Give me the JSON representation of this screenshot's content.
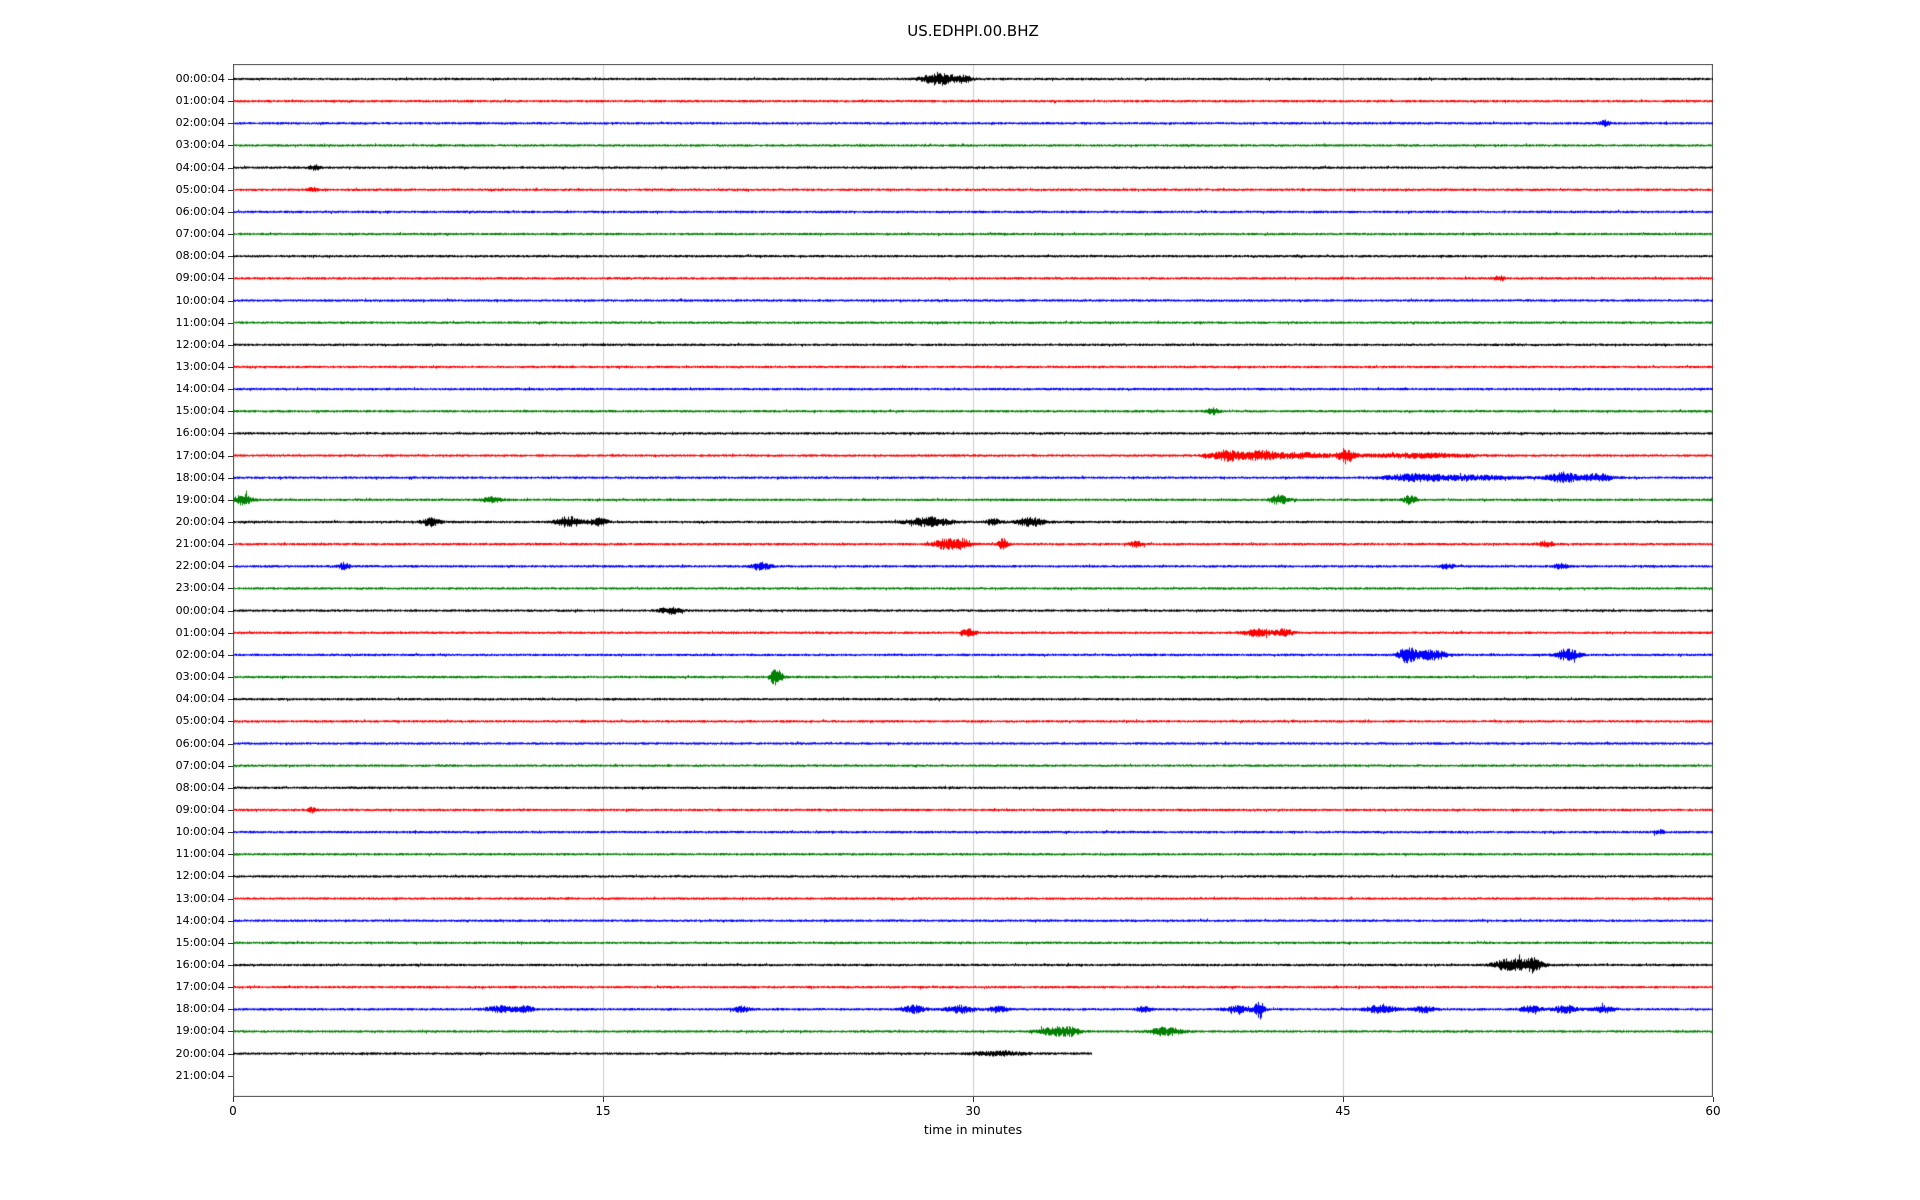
{
  "title": "US.EDHPI.00.BHZ",
  "chart_data": {
    "type": "line",
    "subtype": "helicorder-seismogram",
    "title": "US.EDHPI.00.BHZ",
    "xlabel": "time in minutes",
    "x_ticks": [
      0,
      15,
      30,
      45,
      60
    ],
    "x_range": [
      0,
      60
    ],
    "grid_x": [
      15,
      30,
      45
    ],
    "grid_color": "#cccccc",
    "box_color": "#4a4a4a",
    "color_cycle": [
      "#000000",
      "#ff0000",
      "#0000ff",
      "#008000"
    ],
    "noise_base_amplitude": 1.3,
    "rows": [
      {
        "label": "00:00:04",
        "end": 60,
        "events": [
          {
            "t": 28.6,
            "a": 6,
            "w": 0.9
          },
          {
            "t": 29.6,
            "a": 3,
            "w": 0.5
          }
        ]
      },
      {
        "label": "01:00:04",
        "end": 60,
        "events": []
      },
      {
        "label": "02:00:04",
        "end": 60,
        "events": [
          {
            "t": 55.6,
            "a": 2.5,
            "w": 0.3
          }
        ]
      },
      {
        "label": "03:00:04",
        "end": 60,
        "events": []
      },
      {
        "label": "04:00:04",
        "end": 60,
        "events": [
          {
            "t": 3.3,
            "a": 2.5,
            "w": 0.3
          }
        ]
      },
      {
        "label": "05:00:04",
        "end": 60,
        "events": [
          {
            "t": 3.2,
            "a": 2,
            "w": 0.25
          }
        ]
      },
      {
        "label": "06:00:04",
        "end": 60,
        "events": []
      },
      {
        "label": "07:00:04",
        "end": 60,
        "events": []
      },
      {
        "label": "08:00:04",
        "end": 60,
        "events": []
      },
      {
        "label": "09:00:04",
        "end": 60,
        "events": [
          {
            "t": 51.3,
            "a": 2.5,
            "w": 0.3
          }
        ]
      },
      {
        "label": "10:00:04",
        "end": 60,
        "events": []
      },
      {
        "label": "11:00:04",
        "end": 60,
        "events": []
      },
      {
        "label": "12:00:04",
        "end": 60,
        "events": []
      },
      {
        "label": "13:00:04",
        "end": 60,
        "events": []
      },
      {
        "label": "14:00:04",
        "end": 60,
        "events": []
      },
      {
        "label": "15:00:04",
        "end": 60,
        "events": [
          {
            "t": 39.7,
            "a": 3,
            "w": 0.35
          }
        ]
      },
      {
        "label": "16:00:04",
        "end": 60,
        "events": []
      },
      {
        "label": "17:00:04",
        "end": 60,
        "events": [
          {
            "t": 40.3,
            "a": 5,
            "w": 1.0
          },
          {
            "t": 41.6,
            "a": 4,
            "w": 0.8
          },
          {
            "t": 45.1,
            "a": 7,
            "w": 0.4
          },
          {
            "t": 43,
            "a": 2.5,
            "w": 2
          },
          {
            "t": 48,
            "a": 2,
            "w": 3
          }
        ]
      },
      {
        "label": "18:00:04",
        "end": 60,
        "events": [
          {
            "t": 47.8,
            "a": 3,
            "w": 1.5
          },
          {
            "t": 53.9,
            "a": 5,
            "w": 0.8
          },
          {
            "t": 55.3,
            "a": 4,
            "w": 0.8
          },
          {
            "t": 50,
            "a": 2,
            "w": 3
          }
        ]
      },
      {
        "label": "19:00:04",
        "end": 60,
        "events": [
          {
            "t": 0.4,
            "a": 5,
            "w": 0.5
          },
          {
            "t": 10.5,
            "a": 2.5,
            "w": 0.6
          },
          {
            "t": 42.4,
            "a": 4.5,
            "w": 0.5
          },
          {
            "t": 47.7,
            "a": 4,
            "w": 0.4
          }
        ]
      },
      {
        "label": "20:00:04",
        "end": 60,
        "events": [
          {
            "t": 8.0,
            "a": 4,
            "w": 0.5
          },
          {
            "t": 13.6,
            "a": 5,
            "w": 0.7
          },
          {
            "t": 14.8,
            "a": 4,
            "w": 0.5
          },
          {
            "t": 28.2,
            "a": 4.5,
            "w": 1.2
          },
          {
            "t": 30.8,
            "a": 3,
            "w": 0.4
          },
          {
            "t": 32.3,
            "a": 4,
            "w": 0.8
          }
        ]
      },
      {
        "label": "21:00:04",
        "end": 60,
        "events": [
          {
            "t": 28.9,
            "a": 5,
            "w": 0.7
          },
          {
            "t": 29.6,
            "a": 4,
            "w": 0.5
          },
          {
            "t": 31.2,
            "a": 6,
            "w": 0.25
          },
          {
            "t": 36.6,
            "a": 2.5,
            "w": 0.4
          },
          {
            "t": 53.2,
            "a": 2.5,
            "w": 0.5
          }
        ]
      },
      {
        "label": "22:00:04",
        "end": 60,
        "events": [
          {
            "t": 4.5,
            "a": 3.5,
            "w": 0.3
          },
          {
            "t": 21.4,
            "a": 4,
            "w": 0.5
          },
          {
            "t": 49.2,
            "a": 2.5,
            "w": 0.4
          },
          {
            "t": 53.8,
            "a": 2.5,
            "w": 0.4
          }
        ]
      },
      {
        "label": "23:00:04",
        "end": 60,
        "events": []
      },
      {
        "label": "00:00:04",
        "end": 60,
        "events": [
          {
            "t": 17.7,
            "a": 3,
            "w": 0.6
          }
        ]
      },
      {
        "label": "01:00:04",
        "end": 60,
        "events": [
          {
            "t": 29.8,
            "a": 3.5,
            "w": 0.4
          },
          {
            "t": 41.6,
            "a": 3.5,
            "w": 0.8
          },
          {
            "t": 42.6,
            "a": 3,
            "w": 0.5
          }
        ]
      },
      {
        "label": "02:00:04",
        "end": 60,
        "events": [
          {
            "t": 47.6,
            "a": 8,
            "w": 0.5
          },
          {
            "t": 48.6,
            "a": 5,
            "w": 0.8
          },
          {
            "t": 54.1,
            "a": 6,
            "w": 0.6
          }
        ]
      },
      {
        "label": "03:00:04",
        "end": 60,
        "events": [
          {
            "t": 22.0,
            "a": 8,
            "w": 0.35
          }
        ]
      },
      {
        "label": "04:00:04",
        "end": 60,
        "events": []
      },
      {
        "label": "05:00:04",
        "end": 60,
        "events": []
      },
      {
        "label": "06:00:04",
        "end": 60,
        "events": []
      },
      {
        "label": "07:00:04",
        "end": 60,
        "events": []
      },
      {
        "label": "08:00:04",
        "end": 60,
        "events": []
      },
      {
        "label": "09:00:04",
        "end": 60,
        "events": [
          {
            "t": 3.2,
            "a": 2.5,
            "w": 0.25
          }
        ]
      },
      {
        "label": "10:00:04",
        "end": 60,
        "events": [
          {
            "t": 57.8,
            "a": 2,
            "w": 0.3
          }
        ]
      },
      {
        "label": "11:00:04",
        "end": 60,
        "events": []
      },
      {
        "label": "12:00:04",
        "end": 60,
        "events": []
      },
      {
        "label": "13:00:04",
        "end": 60,
        "events": []
      },
      {
        "label": "14:00:04",
        "end": 60,
        "events": []
      },
      {
        "label": "15:00:04",
        "end": 60,
        "events": []
      },
      {
        "label": "16:00:04",
        "end": 60,
        "events": [
          {
            "t": 51.7,
            "a": 4,
            "w": 0.8
          },
          {
            "t": 52.7,
            "a": 6,
            "w": 0.4
          },
          {
            "t": 52.2,
            "a": 3,
            "w": 1.2
          }
        ]
      },
      {
        "label": "17:00:04",
        "end": 60,
        "events": []
      },
      {
        "label": "18:00:04",
        "end": 60,
        "events": [
          {
            "t": 10.8,
            "a": 3,
            "w": 0.8
          },
          {
            "t": 11.8,
            "a": 3,
            "w": 0.5
          },
          {
            "t": 20.6,
            "a": 2.5,
            "w": 0.5
          },
          {
            "t": 27.6,
            "a": 3.5,
            "w": 0.6
          },
          {
            "t": 29.5,
            "a": 3.5,
            "w": 0.8
          },
          {
            "t": 31.0,
            "a": 3,
            "w": 0.5
          },
          {
            "t": 36.9,
            "a": 2.5,
            "w": 0.4
          },
          {
            "t": 40.8,
            "a": 3,
            "w": 0.8
          },
          {
            "t": 41.6,
            "a": 9,
            "w": 0.25
          },
          {
            "t": 46.5,
            "a": 3.5,
            "w": 0.9
          },
          {
            "t": 48.3,
            "a": 3,
            "w": 0.6
          },
          {
            "t": 52.6,
            "a": 3,
            "w": 0.6
          },
          {
            "t": 54.0,
            "a": 3.5,
            "w": 0.7
          },
          {
            "t": 55.6,
            "a": 3,
            "w": 0.6
          }
        ]
      },
      {
        "label": "19:00:04",
        "end": 60,
        "events": [
          {
            "t": 33.3,
            "a": 4,
            "w": 0.9
          },
          {
            "t": 34.0,
            "a": 3,
            "w": 0.5
          },
          {
            "t": 37.8,
            "a": 4,
            "w": 0.9
          }
        ]
      },
      {
        "label": "20:00:04",
        "end": 34.8,
        "events": [
          {
            "t": 31.0,
            "a": 2,
            "w": 1.5
          }
        ]
      },
      {
        "label": "21:00:04",
        "end": 0,
        "events": []
      }
    ]
  }
}
